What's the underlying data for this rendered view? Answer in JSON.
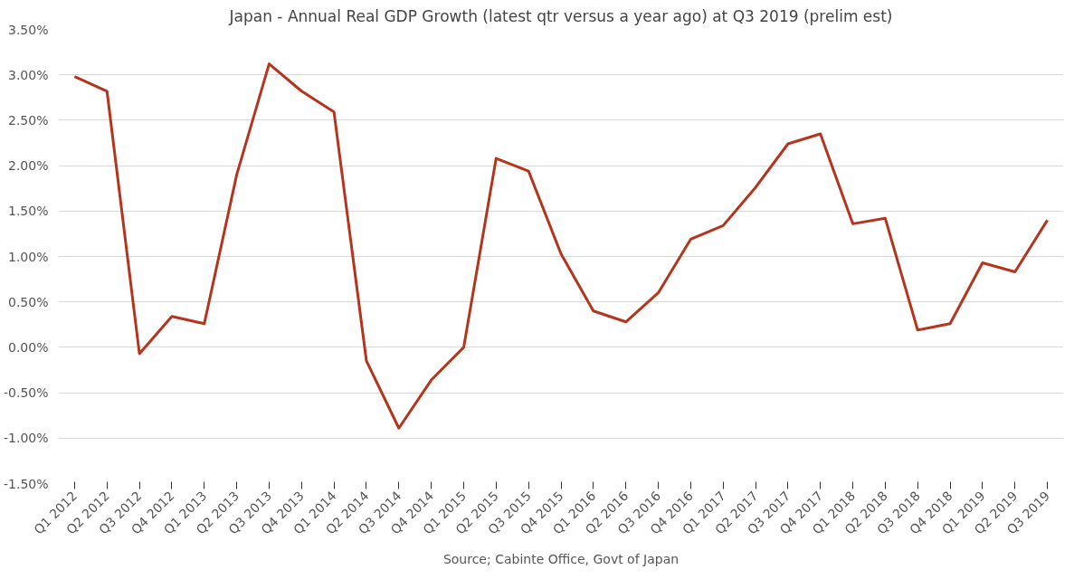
{
  "chart_data": {
    "type": "line",
    "title": "Japan - Annual Real GDP Growth (latest qtr versus a year ago) at Q3 2019 (prelim est)",
    "categories": [
      "Q1 2012",
      "Q2 2012",
      "Q3 2012",
      "Q4 2012",
      "Q1 2013",
      "Q2 2013",
      "Q3 2013",
      "Q4 2013",
      "Q1 2014",
      "Q2 2014",
      "Q3 2014",
      "Q4 2014",
      "Q1 2015",
      "Q2 2015",
      "Q3 2015",
      "Q4 2015",
      "Q1 2016",
      "Q2 2016",
      "Q3 2016",
      "Q4 2016",
      "Q1 2017",
      "Q2 2017",
      "Q3 2017",
      "Q4 2017",
      "Q1 2018",
      "Q2 2018",
      "Q3 2018",
      "Q4 2018",
      "Q1 2019",
      "Q2 2019",
      "Q3 2019"
    ],
    "series": [
      {
        "color": "#b5341c",
        "values": [
          2.98,
          2.82,
          -0.07,
          0.34,
          0.26,
          1.9,
          3.12,
          2.82,
          2.59,
          -0.15,
          -0.89,
          -0.36,
          0.0,
          2.08,
          1.94,
          1.03,
          0.4,
          0.28,
          0.6,
          1.19,
          1.34,
          1.76,
          2.24,
          2.35,
          1.36,
          1.42,
          0.19,
          0.26,
          0.93,
          0.83,
          1.4
        ]
      }
    ],
    "ylim": [
      -1.5,
      3.5
    ],
    "yticks": [
      {
        "value": -1.5,
        "label": "-1.50%"
      },
      {
        "value": -1.0,
        "label": "-1.00%"
      },
      {
        "value": -0.5,
        "label": "-0.50%"
      },
      {
        "value": 0,
        "label": "0.00%"
      },
      {
        "value": 0.5,
        "label": "0.50%"
      },
      {
        "value": 1.0,
        "label": "1.00%"
      },
      {
        "value": 1.5,
        "label": "1.50%"
      },
      {
        "value": 2.0,
        "label": "2.00%"
      },
      {
        "value": 2.5,
        "label": "2.50%"
      },
      {
        "value": 3.0,
        "label": "3.00%"
      },
      {
        "value": 3.5,
        "label": "3.50%"
      }
    ],
    "grid": "y",
    "marker": "none",
    "line_style": "solid",
    "annotations": [
      "Source; Cabinte Office, Govt of Japan"
    ]
  }
}
